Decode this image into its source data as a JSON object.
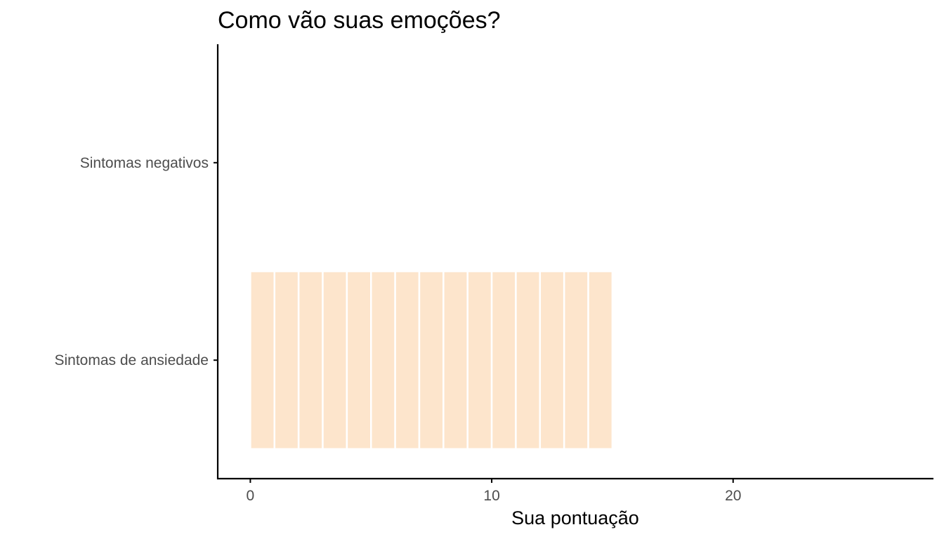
{
  "chart_data": {
    "type": "bar",
    "orientation": "horizontal",
    "title": "Como vão suas emoções?",
    "xlabel": "Sua pontuação",
    "ylabel": "",
    "categories": [
      "Sintomas negativos",
      "Sintomas de ansiedade"
    ],
    "values": [
      0,
      15
    ],
    "segment_unit": 1,
    "xlim": [
      -1.35,
      28.3
    ],
    "xticks": [
      0,
      10,
      20
    ],
    "bar_color": "#fde5cc",
    "segment_border_color": "#ffffff",
    "axis_color": "#000000",
    "grid": false,
    "legend": "none"
  }
}
